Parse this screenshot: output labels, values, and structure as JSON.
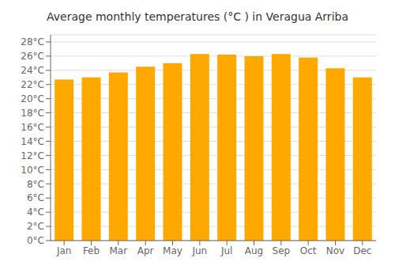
{
  "chart_data": {
    "type": "bar",
    "title": "Average monthly temperatures (°C ) in Veragua Arriba",
    "categories": [
      "Jan",
      "Feb",
      "Mar",
      "Apr",
      "May",
      "Jun",
      "Jul",
      "Aug",
      "Sep",
      "Oct",
      "Nov",
      "Dec"
    ],
    "values": [
      22.7,
      23.0,
      23.7,
      24.5,
      25.0,
      26.3,
      26.2,
      26.0,
      26.3,
      25.8,
      24.3,
      23.0
    ],
    "color": "#FFA800",
    "ylim": [
      0,
      29
    ],
    "yticks": [
      {
        "value": 0,
        "label": "0°C"
      },
      {
        "value": 2,
        "label": "2°C"
      },
      {
        "value": 4,
        "label": "4°C"
      },
      {
        "value": 6,
        "label": "6°C"
      },
      {
        "value": 8,
        "label": "8°C"
      },
      {
        "value": 10,
        "label": "10°C"
      },
      {
        "value": 12,
        "label": "12°C"
      },
      {
        "value": 14,
        "label": "14°C"
      },
      {
        "value": 16,
        "label": "16°C"
      },
      {
        "value": 18,
        "label": "18°C"
      },
      {
        "value": 20,
        "label": "20°C"
      },
      {
        "value": 22,
        "label": "22°C"
      },
      {
        "value": 24,
        "label": "24°C"
      },
      {
        "value": 26,
        "label": "26°C"
      },
      {
        "value": 28,
        "label": "28°C"
      }
    ],
    "grid": true
  }
}
